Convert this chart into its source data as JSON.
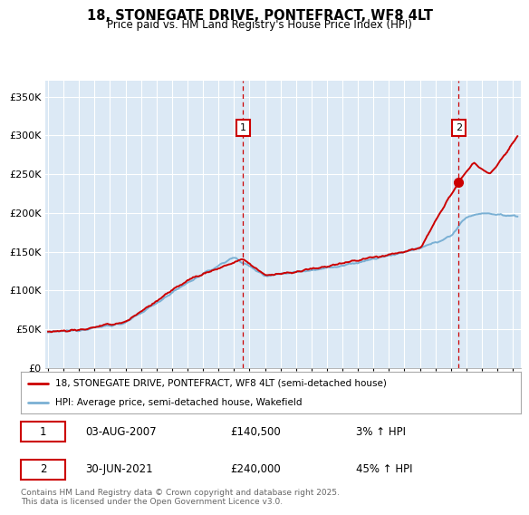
{
  "title": "18, STONEGATE DRIVE, PONTEFRACT, WF8 4LT",
  "subtitle": "Price paid vs. HM Land Registry's House Price Index (HPI)",
  "bg_color": "#dce9f5",
  "y_ticks": [
    0,
    50000,
    100000,
    150000,
    200000,
    250000,
    300000,
    350000
  ],
  "y_tick_labels": [
    "£0",
    "£50K",
    "£100K",
    "£150K",
    "£200K",
    "£250K",
    "£300K",
    "£350K"
  ],
  "legend_line1": "18, STONEGATE DRIVE, PONTEFRACT, WF8 4LT (semi-detached house)",
  "legend_line2": "HPI: Average price, semi-detached house, Wakefield",
  "sale1_date": "03-AUG-2007",
  "sale1_price": 140500,
  "sale1_pct": "3%",
  "sale2_date": "30-JUN-2021",
  "sale2_price": 240000,
  "sale2_pct": "45%",
  "footer": "Contains HM Land Registry data © Crown copyright and database right 2025.\nThis data is licensed under the Open Government Licence v3.0.",
  "red_color": "#cc0000",
  "blue_color": "#7ab0d4",
  "vline_color": "#cc0000",
  "sale1_x": 2007.58,
  "sale2_x": 2021.5,
  "ylim_max": 370000,
  "xlim_min": 1994.8,
  "xlim_max": 2025.5
}
